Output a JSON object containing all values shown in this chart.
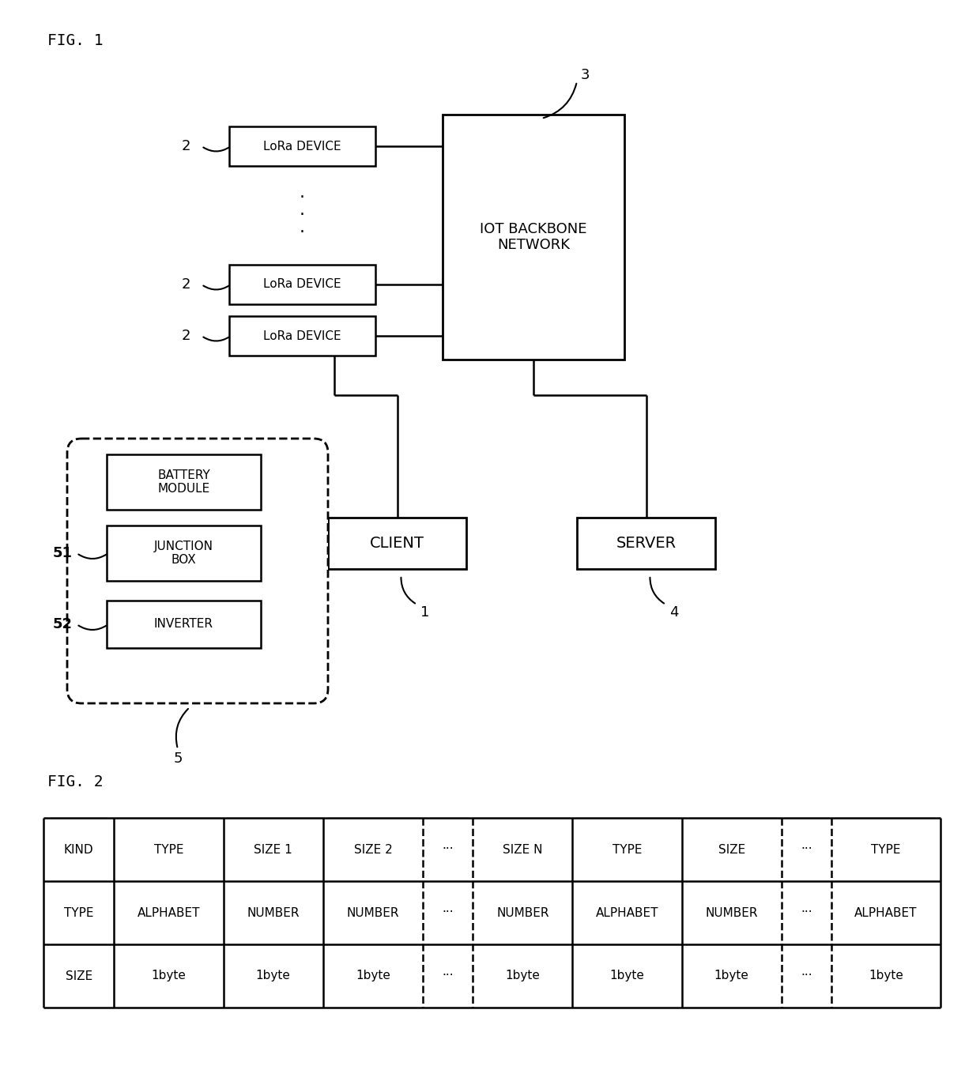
{
  "bg_color": "#ffffff",
  "fig1_label": "FIG. 1",
  "fig2_label": "FIG. 2",
  "lora_label": "LoRa DEVICE",
  "iot_label": "IOT BACKBONE\nNETWORK",
  "client_label": "CLIENT",
  "server_label": "SERVER",
  "battery_label": "BATTERY\nMODULE",
  "junction_label": "JUNCTION\nBOX",
  "inverter_label": "INVERTER",
  "labels_2": [
    "2",
    "2",
    "2"
  ],
  "label_51": "51",
  "label_52": "52",
  "label_1": "1",
  "label_3": "3",
  "label_4": "4",
  "label_5": "5",
  "table_headers": [
    "KIND",
    "TYPE",
    "SIZE 1",
    "SIZE 2",
    "···",
    "SIZE N",
    "TYPE",
    "SIZE",
    "···",
    "TYPE"
  ],
  "table_row1": [
    "TYPE",
    "ALPHABET",
    "NUMBER",
    "NUMBER",
    "···",
    "NUMBER",
    "ALPHABET",
    "NUMBER",
    "···",
    "ALPHABET"
  ],
  "table_row2": [
    "SIZE",
    "1byte",
    "1byte",
    "1byte",
    "···",
    "1byte",
    "1byte",
    "1byte",
    "···",
    "1byte"
  ]
}
